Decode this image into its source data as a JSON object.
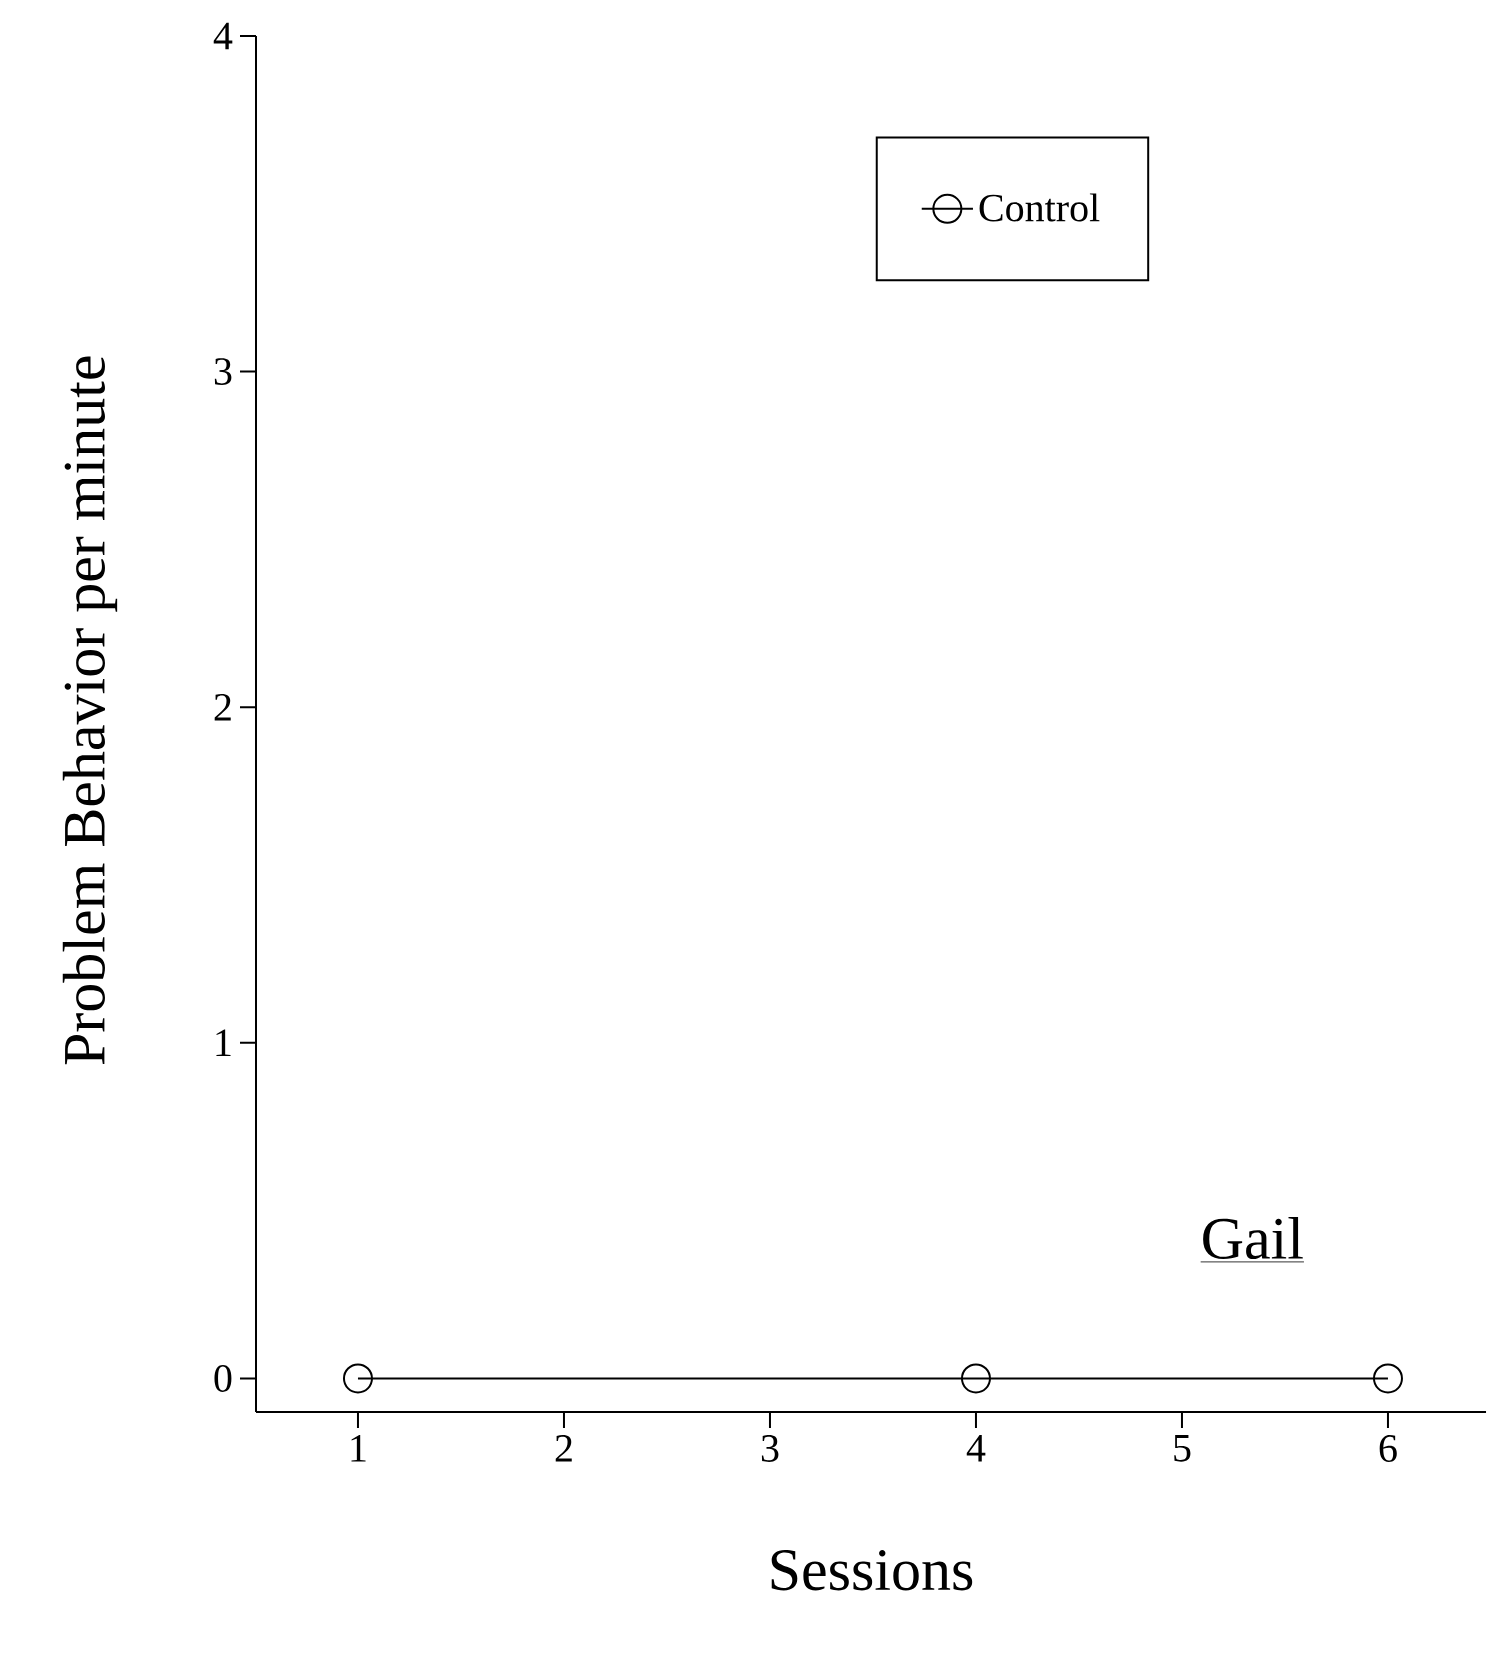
{
  "chart_data": {
    "type": "line",
    "xlabel": "Sessions",
    "ylabel": "Problem Behavior per minute",
    "annotations": [
      "Gail"
    ],
    "x": [
      1,
      4,
      6
    ],
    "series": [
      {
        "name": "Control",
        "color": "#000000",
        "values": [
          0,
          0,
          0
        ]
      }
    ],
    "xlim": [
      0.505,
      6.476
    ],
    "ylim": [
      -0.1,
      4
    ],
    "xticks": [
      1,
      2,
      3,
      4,
      5,
      6
    ],
    "yticks": [
      0,
      1,
      2,
      3,
      4
    ],
    "legend": "top",
    "marker": "circle",
    "line_style": "solid"
  }
}
